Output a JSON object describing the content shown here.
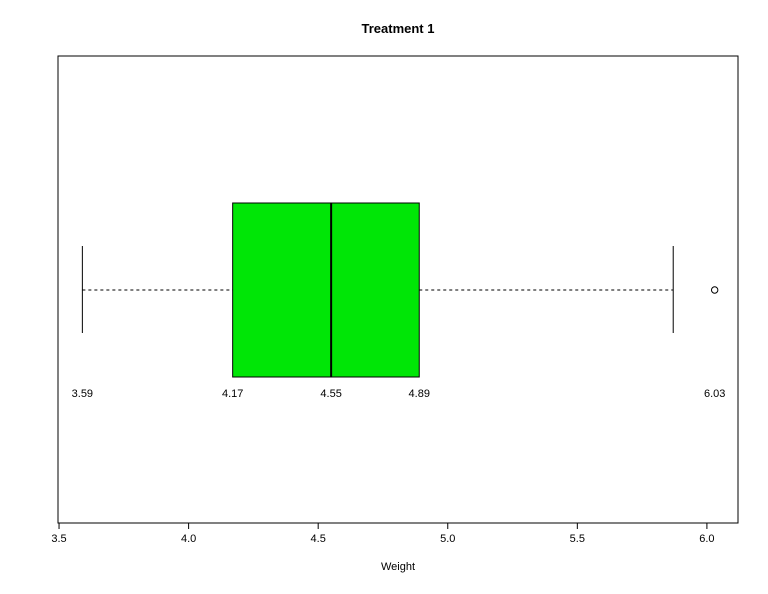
{
  "title": "Treatment 1",
  "xlabel": "Weight",
  "colors": {
    "background": "#ffffff",
    "line": "#000000",
    "box_fill": "#00e606"
  },
  "chart_data": {
    "type": "boxplot",
    "orientation": "horizontal",
    "title": "Treatment 1",
    "xlabel": "Weight",
    "xlim": [
      3.496,
      6.12
    ],
    "x_ticks": [
      3.5,
      4.0,
      4.5,
      5.0,
      5.5,
      6.0
    ],
    "x_tick_labels": [
      "3.5",
      "4.0",
      "4.5",
      "5.0",
      "5.5",
      "6.0"
    ],
    "grid": false,
    "legend": false,
    "box_fill": "#00e606",
    "stats": {
      "whisker_low": 3.59,
      "q1": 4.17,
      "median": 4.55,
      "q3": 4.89,
      "whisker_high": 5.87,
      "outliers": [
        6.03
      ]
    },
    "annotations": [
      {
        "value": 3.59,
        "label": "3.59"
      },
      {
        "value": 4.17,
        "label": "4.17"
      },
      {
        "value": 4.55,
        "label": "4.55"
      },
      {
        "value": 4.89,
        "label": "4.89"
      },
      {
        "value": 6.03,
        "label": "6.03"
      }
    ]
  }
}
